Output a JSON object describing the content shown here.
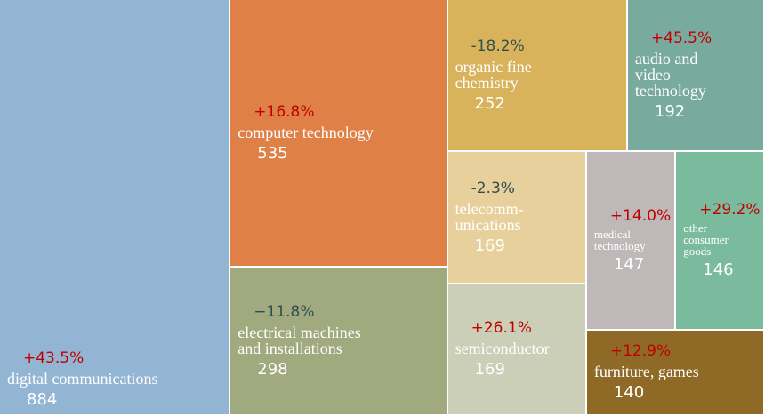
{
  "chart_data": {
    "type": "treemap",
    "categories": [
      "digital communications",
      "computer technology",
      "electrical machines\nand installations",
      "organic fine\nchemistry",
      "audio and\nvideo\ntechnology",
      "telecomm-\nunications",
      "semiconductor",
      "medical\ntechnology",
      "other\nconsumer\ngoods",
      "furniture, games"
    ],
    "values": [
      884,
      535,
      298,
      252,
      192,
      169,
      169,
      147,
      146,
      140
    ],
    "changes": [
      43.5,
      16.8,
      -11.8,
      -18.2,
      45.5,
      -2.3,
      26.1,
      14.0,
      29.2,
      12.9
    ],
    "change_labels": [
      "+43.5%",
      "+16.8%",
      "−11.8%",
      "-18.2%",
      "+45.5%",
      "-2.3%",
      "+26.1%",
      "+14.0%",
      "+29.2%",
      "+12.9%"
    ],
    "colors": [
      "#93b5d4",
      "#df8046",
      "#a1a97e",
      "#d9b25c",
      "#78ab9d",
      "#e8d09c",
      "#cccfb8",
      "#bfb8b9",
      "#7bbb9d",
      "#8e6a26"
    ],
    "positive_color": "#c00000",
    "negative_color": "#2f4f4f"
  }
}
